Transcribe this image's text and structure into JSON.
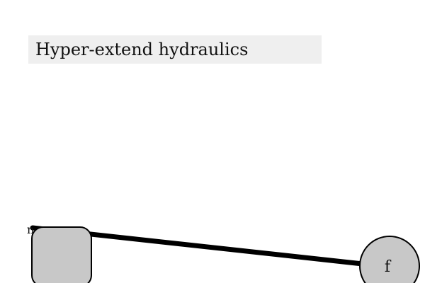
{
  "header": {
    "title": "Hyper-extend hydraulics"
  },
  "nodes": {
    "left": {
      "label": "n",
      "fill": "#c8c8c8"
    },
    "right": {
      "label": "f",
      "fill": "#c8c8c8"
    }
  },
  "colors": {
    "background": "#ffffff",
    "title_bar": "#efefef",
    "link": "#000000",
    "node_stroke": "#000000"
  }
}
